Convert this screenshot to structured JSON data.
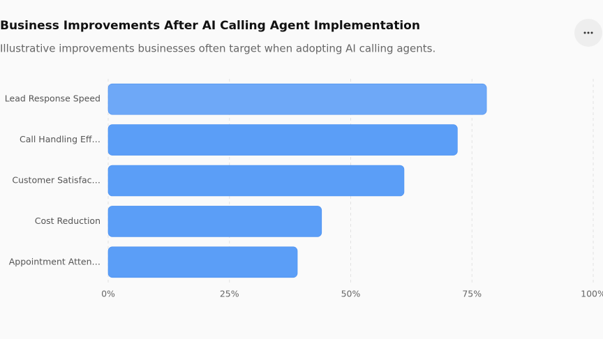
{
  "chart_data": {
    "type": "bar",
    "orientation": "horizontal",
    "title": "Business Improvements After AI Calling Agent Implementation",
    "subtitle": "Illustrative improvements businesses often target when adopting AI calling agents.",
    "categories": [
      "Lead Response Speed",
      "Call Handling Eff…",
      "Customer Satisfac…",
      "Cost Reduction",
      "Appointment Atten…"
    ],
    "values": [
      78,
      72,
      61,
      44,
      39
    ],
    "colors": [
      "#6ea8f7",
      "#5b9ef7",
      "#5b9ef7",
      "#5b9ef7",
      "#5b9ef7"
    ],
    "xlim": [
      0,
      100
    ],
    "xticks": [
      {
        "value": 0,
        "label": "0%"
      },
      {
        "value": 25,
        "label": "25%"
      },
      {
        "value": 50,
        "label": "50%"
      },
      {
        "value": 75,
        "label": "75%"
      },
      {
        "value": 100,
        "label": "100%"
      }
    ],
    "grid": true
  }
}
